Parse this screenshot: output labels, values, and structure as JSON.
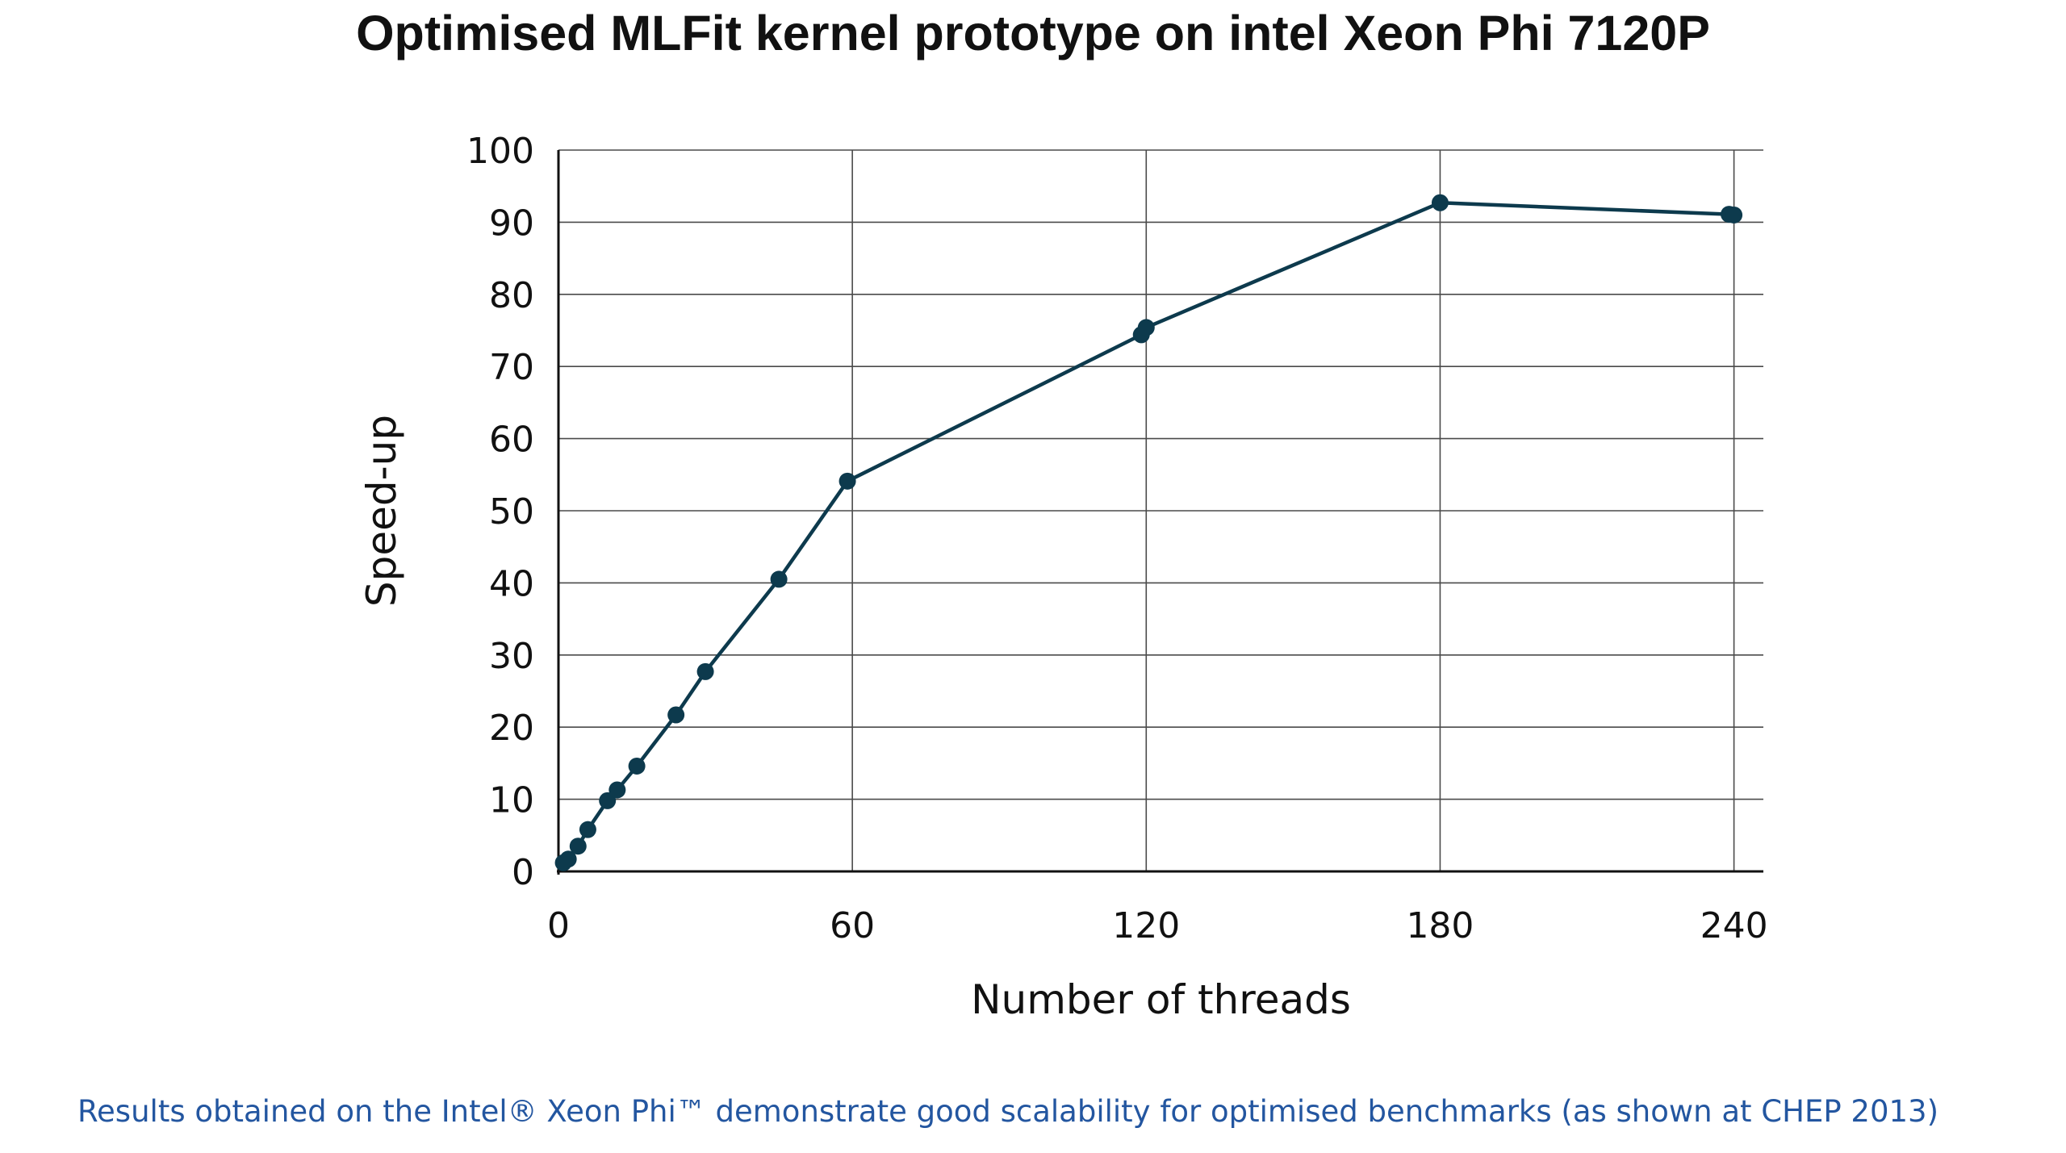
{
  "chart_data": {
    "type": "line",
    "title": "Optimised MLFit kernel prototype on intel Xeon Phi 7120P",
    "xlabel": "Number of threads",
    "ylabel": "Speed-up",
    "xlim": [
      0,
      246
    ],
    "ylim": [
      0,
      100
    ],
    "xticks": [
      0,
      60,
      120,
      180,
      240
    ],
    "yticks": [
      0,
      10,
      20,
      30,
      40,
      50,
      60,
      70,
      80,
      90,
      100
    ],
    "grid": true,
    "legend": "none",
    "line_color": "#0d3a4d",
    "marker_color": "#0d3a4d",
    "series": [
      {
        "x": [
          1,
          2,
          4,
          6,
          10,
          12,
          16,
          24,
          30,
          45,
          59,
          119,
          120,
          180,
          239,
          240
        ],
        "y": [
          1.2,
          1.7,
          3.5,
          5.8,
          9.8,
          11.3,
          14.6,
          21.7,
          27.7,
          40.5,
          54.1,
          74.4,
          75.4,
          92.7,
          91.1,
          91.0
        ]
      }
    ]
  },
  "caption": "Results obtained on the Intel® Xeon Phi™ demonstrate good scalability for optimised benchmarks (as shown at CHEP 2013)"
}
